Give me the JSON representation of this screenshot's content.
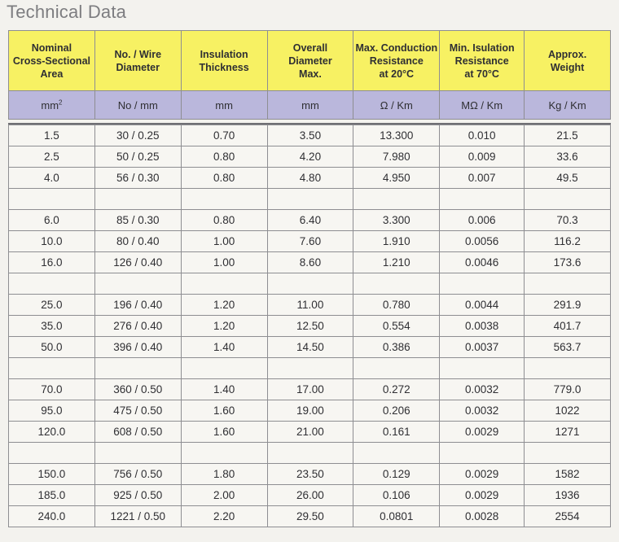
{
  "title": "Technical Data",
  "headers": [
    "Nominal Cross-Sectional Area",
    "No. / Wire Diameter",
    "Insulation Thickness",
    "Overall Diameter Max.",
    "Max. Conduction Resistance at 20°C",
    "Min. Isulation Resistance at 70°C",
    "Approx. Weight"
  ],
  "header_lines": [
    [
      "Nominal",
      "Cross-Sectional",
      "Area"
    ],
    [
      "No. / Wire",
      "Diameter"
    ],
    [
      "Insulation",
      "Thickness"
    ],
    [
      "Overall",
      "Diameter",
      "Max."
    ],
    [
      "Max. Conduction",
      "Resistance",
      "at 20°C"
    ],
    [
      "Min. Isulation",
      "Resistance",
      "at 70°C"
    ],
    [
      "Approx.",
      "Weight"
    ]
  ],
  "units": [
    "mm",
    "No / mm",
    "mm",
    "mm",
    "Ω / Km",
    "MΩ / Km",
    "Kg / Km"
  ],
  "unit_sup": "2",
  "colors": {
    "header_bg": "#f7f163",
    "units_bg": "#bab7dc",
    "border": "#8e8e92"
  },
  "groups": [
    [
      [
        "1.5",
        "30 / 0.25",
        "0.70",
        "3.50",
        "13.300",
        "0.010",
        "21.5"
      ],
      [
        "2.5",
        "50 / 0.25",
        "0.80",
        "4.20",
        "7.980",
        "0.009",
        "33.6"
      ],
      [
        "4.0",
        "56 / 0.30",
        "0.80",
        "4.80",
        "4.950",
        "0.007",
        "49.5"
      ]
    ],
    [
      [
        "6.0",
        "85 / 0.30",
        "0.80",
        "6.40",
        "3.300",
        "0.006",
        "70.3"
      ],
      [
        "10.0",
        "80 / 0.40",
        "1.00",
        "7.60",
        "1.910",
        "0.0056",
        "116.2"
      ],
      [
        "16.0",
        "126 / 0.40",
        "1.00",
        "8.60",
        "1.210",
        "0.0046",
        "173.6"
      ]
    ],
    [
      [
        "25.0",
        "196 / 0.40",
        "1.20",
        "11.00",
        "0.780",
        "0.0044",
        "291.9"
      ],
      [
        "35.0",
        "276 / 0.40",
        "1.20",
        "12.50",
        "0.554",
        "0.0038",
        "401.7"
      ],
      [
        "50.0",
        "396 / 0.40",
        "1.40",
        "14.50",
        "0.386",
        "0.0037",
        "563.7"
      ]
    ],
    [
      [
        "70.0",
        "360 / 0.50",
        "1.40",
        "17.00",
        "0.272",
        "0.0032",
        "779.0"
      ],
      [
        "95.0",
        "475 / 0.50",
        "1.60",
        "19.00",
        "0.206",
        "0.0032",
        "1022"
      ],
      [
        "120.0",
        "608 / 0.50",
        "1.60",
        "21.00",
        "0.161",
        "0.0029",
        "1271"
      ]
    ],
    [
      [
        "150.0",
        "756 / 0.50",
        "1.80",
        "23.50",
        "0.129",
        "0.0029",
        "1582"
      ],
      [
        "185.0",
        "925 / 0.50",
        "2.00",
        "26.00",
        "0.106",
        "0.0029",
        "1936"
      ],
      [
        "240.0",
        "1221 / 0.50",
        "2.20",
        "29.50",
        "0.0801",
        "0.0028",
        "2554"
      ]
    ]
  ]
}
